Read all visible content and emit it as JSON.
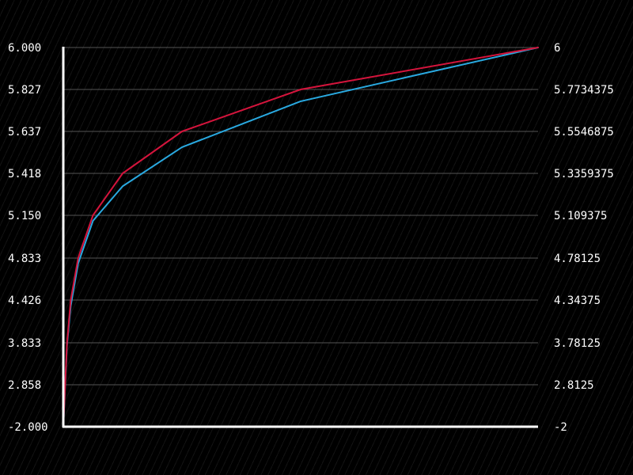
{
  "chart_data": {
    "type": "line",
    "left_axis_ticks": [
      "6.000",
      "5.827",
      "5.637",
      "5.418",
      "5.150",
      "4.833",
      "4.426",
      "3.833",
      "2.858",
      "-2.000"
    ],
    "right_axis_ticks": [
      "6",
      "5.7734375",
      "5.5546875",
      "5.3359375",
      "5.109375",
      "4.78125",
      "4.34375",
      "3.78125",
      "2.8125",
      "-2"
    ],
    "grid": true,
    "series": [
      {
        "color": "#29a9e0",
        "x": [
          0,
          1,
          2,
          4,
          8,
          16,
          32,
          64,
          128
        ],
        "y": [
          -2,
          3.78125,
          4.34375,
          4.78125,
          5.109375,
          5.3359375,
          5.5546875,
          5.7734375,
          6
        ]
      },
      {
        "color": "#d4143c",
        "x": [
          0,
          1,
          2,
          4,
          8,
          16,
          32,
          64,
          128
        ],
        "y": [
          -2,
          3.833,
          4.426,
          4.833,
          5.15,
          5.418,
          5.637,
          5.827,
          6
        ]
      }
    ]
  }
}
